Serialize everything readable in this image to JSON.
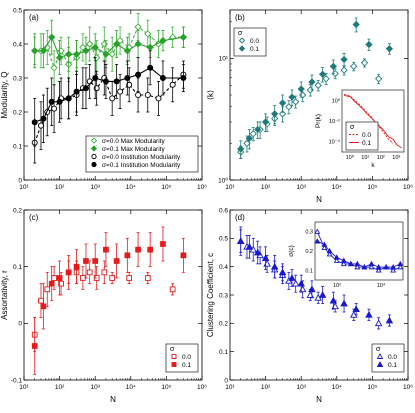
{
  "chart_data": [
    {
      "panel_label": "(a)",
      "type": "line",
      "xlabel": "",
      "ylabel": "Modularity, Q",
      "xscale": "log",
      "xlim": [
        10,
        1000000
      ],
      "ylim": [
        0,
        0.5
      ],
      "xticks": [
        "10¹",
        "10²",
        "10³",
        "10⁴",
        "10⁵",
        "10⁶"
      ],
      "yticks": [
        "0",
        "0.1",
        "0.2",
        "0.3",
        "0.4",
        "0.5"
      ],
      "legend_position": "bottom-right",
      "series": [
        {
          "name": "σ=0.0 Max Modularity",
          "color": "#3bb13b",
          "marker": "open-diamond",
          "dash": "dashed",
          "x": [
            20,
            30,
            45,
            70,
            110,
            180,
            300,
            450,
            700,
            1100,
            1800,
            3000,
            5000,
            9000,
            16000,
            30000,
            60000,
            150000,
            300000
          ],
          "y": [
            0.38,
            0.38,
            0.39,
            0.33,
            0.38,
            0.34,
            0.36,
            0.39,
            0.4,
            0.36,
            0.4,
            0.37,
            0.41,
            0.39,
            0.45,
            0.43,
            0.4,
            0.42,
            0.42
          ],
          "err": [
            0.04,
            0.05,
            0.05,
            0.05,
            0.04,
            0.05,
            0.05,
            0.04,
            0.05,
            0.05,
            0.05,
            0.05,
            0.04,
            0.04,
            0.04,
            0.04,
            0.04,
            0.03,
            0.03
          ]
        },
        {
          "name": "σ=0.1 Max Modularity",
          "color": "#2aa02a",
          "marker": "filled-diamond",
          "dash": "solid",
          "x": [
            20,
            35,
            60,
            100,
            180,
            300,
            550,
            1000,
            2000,
            4000,
            8000,
            16000,
            35000,
            80000,
            300000
          ],
          "y": [
            0.38,
            0.38,
            0.42,
            0.36,
            0.37,
            0.37,
            0.38,
            0.39,
            0.37,
            0.4,
            0.38,
            0.4,
            0.39,
            0.41,
            0.42
          ],
          "err": [
            0.05,
            0.05,
            0.05,
            0.05,
            0.05,
            0.04,
            0.04,
            0.04,
            0.04,
            0.04,
            0.04,
            0.04,
            0.03,
            0.03,
            0.03
          ]
        },
        {
          "name": "σ=0.0 Institution Modularity",
          "color": "#000000",
          "marker": "open-circle",
          "dash": "dashed",
          "x": [
            20,
            30,
            45,
            70,
            110,
            180,
            300,
            450,
            700,
            1100,
            1800,
            3000,
            5000,
            9000,
            16000,
            30000,
            60000,
            150000,
            300000
          ],
          "y": [
            0.11,
            0.16,
            0.2,
            0.21,
            0.24,
            0.24,
            0.25,
            0.27,
            0.29,
            0.27,
            0.3,
            0.24,
            0.26,
            0.28,
            0.25,
            0.25,
            0.24,
            0.28,
            0.31
          ],
          "err": [
            0.06,
            0.07,
            0.07,
            0.07,
            0.06,
            0.06,
            0.06,
            0.06,
            0.05,
            0.05,
            0.05,
            0.05,
            0.05,
            0.05,
            0.05,
            0.05,
            0.05,
            0.05,
            0.04
          ]
        },
        {
          "name": "σ=0.1 Institution Modularity",
          "color": "#000000",
          "marker": "filled-circle",
          "dash": "solid",
          "x": [
            20,
            35,
            60,
            100,
            180,
            300,
            550,
            1000,
            2000,
            4000,
            8000,
            16000,
            35000,
            80000,
            300000
          ],
          "y": [
            0.17,
            0.18,
            0.23,
            0.23,
            0.24,
            0.26,
            0.27,
            0.3,
            0.29,
            0.29,
            0.3,
            0.31,
            0.33,
            0.3,
            0.3
          ],
          "err": [
            0.07,
            0.07,
            0.07,
            0.06,
            0.06,
            0.06,
            0.06,
            0.06,
            0.05,
            0.05,
            0.05,
            0.05,
            0.05,
            0.05,
            0.04
          ]
        }
      ]
    },
    {
      "panel_label": "(b)",
      "type": "scatter",
      "xlabel": "N",
      "ylabel": "⟨k⟩",
      "xscale": "log",
      "yscale": "log",
      "xlim": [
        10,
        1000000
      ],
      "ylim": [
        1,
        25
      ],
      "xticks": [
        "10¹",
        "10²",
        "10³",
        "10⁴",
        "10⁵",
        "10⁶"
      ],
      "yticks": [
        "10⁰",
        "10¹"
      ],
      "legend_title": "σ",
      "legend_position": "top-left",
      "series": [
        {
          "name": "0.0",
          "color": "#1f7b7b",
          "marker": "open-diamond",
          "x": [
            20,
            30,
            45,
            70,
            110,
            180,
            300,
            450,
            700,
            1100,
            1800,
            3000,
            5000,
            9000,
            16000,
            30000,
            60000,
            150000
          ],
          "y": [
            1.7,
            2.0,
            2.4,
            2.6,
            2.9,
            3.2,
            3.5,
            4.0,
            4.4,
            5.0,
            5.5,
            6.0,
            6.8,
            7.5,
            8.0,
            8.6,
            9.2,
            6.8
          ],
          "err": [
            0.2,
            0.3,
            0.3,
            0.4,
            0.4,
            0.4,
            0.5,
            0.5,
            0.5,
            0.6,
            0.6,
            0.6,
            0.7,
            0.7,
            0.7,
            0.7,
            0.7,
            0.6
          ]
        },
        {
          "name": "0.1",
          "color": "#1f7b7b",
          "marker": "filled-diamond",
          "x": [
            20,
            35,
            60,
            100,
            180,
            300,
            550,
            1000,
            2000,
            4000,
            8000,
            16000,
            35000,
            80000,
            300000
          ],
          "y": [
            1.8,
            2.2,
            2.6,
            3.0,
            3.5,
            4.3,
            4.8,
            5.6,
            6.4,
            7.4,
            8.6,
            9.8,
            19,
            13,
            12
          ],
          "err": [
            0.3,
            0.4,
            0.4,
            0.5,
            0.6,
            0.7,
            0.7,
            0.8,
            0.9,
            1.0,
            1.1,
            1.2,
            2.5,
            1.4,
            1.2
          ]
        }
      ],
      "inset": {
        "type": "line",
        "xlabel": "k",
        "ylabel": "Pr(k)",
        "xscale": "log",
        "yscale": "log",
        "xticks": [
          "10⁰",
          "10¹",
          "10²",
          "10³"
        ],
        "yticks": [
          "10⁻⁴",
          "10⁻²",
          "10⁰"
        ],
        "legend_title": "σ",
        "series": [
          {
            "name": "0.0",
            "color": "#e41a1c",
            "dash": "dashed",
            "x": [
              1,
              2,
              3,
              5,
              8,
              12,
              20,
              30,
              50,
              80,
              120,
              200
            ],
            "y": [
              0.3,
              0.22,
              0.12,
              0.06,
              0.03,
              0.015,
              0.007,
              0.003,
              0.0012,
              0.0005,
              0.0002,
              0.0001
            ]
          },
          {
            "name": "0.1",
            "color": "#e41a1c",
            "dash": "solid",
            "x": [
              1,
              2,
              3,
              5,
              8,
              12,
              20,
              30,
              50,
              80,
              120,
              200,
              300,
              500
            ],
            "y": [
              0.25,
              0.2,
              0.1,
              0.05,
              0.025,
              0.012,
              0.006,
              0.003,
              0.0015,
              0.0007,
              0.0003,
              0.0002,
              8e-05,
              5e-05
            ]
          }
        ]
      }
    },
    {
      "panel_label": "(c)",
      "type": "scatter",
      "xlabel": "N",
      "ylabel": "Assortativity, r",
      "xscale": "log",
      "xlim": [
        10,
        1000000
      ],
      "ylim": [
        -0.1,
        0.2
      ],
      "xticks": [
        "10¹",
        "10²",
        "10³",
        "10⁴",
        "10⁵",
        "10⁶"
      ],
      "yticks": [
        "-0.1",
        "0",
        "0.1",
        "0.2"
      ],
      "legend_title": "σ",
      "legend_position": "bottom-right",
      "series": [
        {
          "name": "0.0",
          "color": "#e41a1c",
          "marker": "open-square",
          "x": [
            20,
            30,
            45,
            70,
            110,
            180,
            300,
            450,
            700,
            1100,
            1800,
            3000,
            9000,
            30000,
            150000
          ],
          "y": [
            -0.02,
            0.04,
            0.06,
            0.08,
            0.07,
            0.09,
            0.09,
            0.08,
            0.09,
            0.08,
            0.09,
            0.08,
            0.08,
            0.08,
            0.06
          ],
          "err": [
            0.03,
            0.03,
            0.03,
            0.02,
            0.02,
            0.02,
            0.02,
            0.02,
            0.02,
            0.02,
            0.02,
            0.01,
            0.01,
            0.01,
            0.01
          ]
        },
        {
          "name": "0.1",
          "color": "#e41a1c",
          "marker": "filled-square",
          "x": [
            20,
            35,
            60,
            100,
            180,
            300,
            550,
            1000,
            2000,
            4000,
            8000,
            16000,
            35000,
            80000,
            300000
          ],
          "y": [
            -0.04,
            0.03,
            0.07,
            0.08,
            0.09,
            0.1,
            0.11,
            0.11,
            0.13,
            0.11,
            0.12,
            0.13,
            0.13,
            0.14,
            0.12
          ],
          "err": [
            0.05,
            0.04,
            0.03,
            0.03,
            0.03,
            0.03,
            0.03,
            0.03,
            0.03,
            0.03,
            0.03,
            0.03,
            0.03,
            0.03,
            0.03
          ]
        }
      ]
    },
    {
      "panel_label": "(d)",
      "type": "scatter",
      "xlabel": "N",
      "ylabel": "Clustering Coefficient, c",
      "xscale": "log",
      "xlim": [
        10,
        1000000
      ],
      "ylim": [
        0,
        0.6
      ],
      "xticks": [
        "10¹",
        "10²",
        "10³",
        "10⁴",
        "10⁵",
        "10⁶"
      ],
      "yticks": [
        "0",
        "0.1",
        "0.2",
        "0.3",
        "0.4",
        "0.5",
        "0.6"
      ],
      "legend_title": "σ",
      "legend_position": "bottom-right",
      "series": [
        {
          "name": "0.0",
          "color": "#1a1acc",
          "marker": "open-triangle",
          "x": [
            20,
            30,
            45,
            70,
            110,
            180,
            300,
            450,
            700,
            1100,
            1800,
            3000,
            9000,
            30000,
            150000
          ],
          "y": [
            0.49,
            0.47,
            0.46,
            0.44,
            0.41,
            0.39,
            0.37,
            0.35,
            0.34,
            0.32,
            0.3,
            0.29,
            0.26,
            0.23,
            0.2
          ],
          "err": [
            0.04,
            0.04,
            0.04,
            0.03,
            0.03,
            0.03,
            0.03,
            0.03,
            0.03,
            0.03,
            0.02,
            0.02,
            0.02,
            0.02,
            0.02
          ]
        },
        {
          "name": "0.1",
          "color": "#1a1acc",
          "marker": "filled-triangle",
          "x": [
            20,
            35,
            60,
            100,
            180,
            300,
            550,
            1000,
            2000,
            4000,
            8000,
            16000,
            35000,
            80000,
            300000
          ],
          "y": [
            0.49,
            0.47,
            0.45,
            0.43,
            0.4,
            0.38,
            0.36,
            0.34,
            0.32,
            0.3,
            0.28,
            0.27,
            0.25,
            0.23,
            0.21
          ],
          "err": [
            0.05,
            0.04,
            0.04,
            0.04,
            0.04,
            0.03,
            0.03,
            0.03,
            0.03,
            0.03,
            0.03,
            0.03,
            0.02,
            0.02,
            0.02
          ]
        }
      ],
      "inset": {
        "type": "line",
        "xlabel": "",
        "ylabel": "σ(c)",
        "xscale": "log",
        "xticks": [
          "10²",
          "10⁴"
        ],
        "yticks": [
          "0.1",
          "0.2",
          "0.3"
        ],
        "series": [
          {
            "name": "0.0",
            "color": "#1a1acc",
            "marker": "open-triangle",
            "x": [
              30,
              60,
              100,
              200,
              400,
              800,
              1500,
              3000,
              6000,
              12000,
              25000,
              50000,
              100000
            ],
            "y": [
              0.25,
              0.2,
              0.18,
              0.16,
              0.15,
              0.15,
              0.14,
              0.14,
              0.14,
              0.13,
              0.14,
              0.13,
              0.14
            ]
          },
          {
            "name": "0.1",
            "color": "#1a1acc",
            "marker": "filled-triangle",
            "x": [
              30,
              60,
              100,
              200,
              400,
              800,
              1500,
              3000,
              6000,
              12000,
              25000,
              50000,
              100000
            ],
            "y": [
              0.22,
              0.21,
              0.19,
              0.17,
              0.16,
              0.15,
              0.15,
              0.14,
              0.15,
              0.14,
              0.14,
              0.14,
              0.15
            ]
          }
        ]
      }
    }
  ]
}
